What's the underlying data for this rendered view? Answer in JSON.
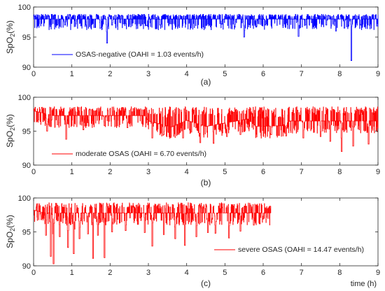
{
  "chart_data": [
    {
      "type": "line",
      "panel_label": "(a)",
      "ylabel": "SpO2(%)",
      "xlabel": "",
      "xlim": [
        0,
        9
      ],
      "ylim": [
        90,
        100
      ],
      "xticks": [
        "0",
        "1",
        "2",
        "3",
        "4",
        "5",
        "6",
        "7",
        "8",
        "9"
      ],
      "yticks": [
        "90",
        "95",
        "100"
      ],
      "legend_position": "lower-left",
      "series": [
        {
          "name": "OSAS-negative (OAHI = 1.03 events/h)",
          "color": "#0000ff",
          "end": 9.0,
          "upper": 98.8,
          "baseline": [
            [
              0,
              98
            ],
            [
              9,
              98
            ]
          ],
          "dips": [
            [
              0.62,
              97.0
            ],
            [
              0.82,
              97.0
            ],
            [
              1.1,
              97.2
            ],
            [
              1.38,
              97.0
            ],
            [
              1.58,
              96.6
            ],
            [
              1.75,
              96.5
            ],
            [
              1.92,
              94.0
            ],
            [
              2.05,
              97.0
            ],
            [
              2.35,
              97.2
            ],
            [
              2.95,
              96.9
            ],
            [
              3.3,
              97.0
            ],
            [
              4.9,
              97.2
            ],
            [
              5.25,
              96.8
            ],
            [
              5.5,
              95.0
            ],
            [
              5.82,
              96.8
            ],
            [
              6.05,
              97.0
            ],
            [
              6.92,
              95.1
            ],
            [
              7.1,
              97.0
            ],
            [
              7.65,
              97.0
            ],
            [
              7.9,
              96.0
            ],
            [
              8.12,
              96.5
            ],
            [
              8.3,
              91.1
            ],
            [
              8.55,
              97.0
            ]
          ]
        }
      ]
    },
    {
      "type": "line",
      "panel_label": "(b)",
      "ylabel": "SpO2(%)",
      "xlabel": "",
      "xlim": [
        0,
        9
      ],
      "ylim": [
        90,
        100
      ],
      "xticks": [
        "0",
        "1",
        "2",
        "3",
        "4",
        "5",
        "6",
        "7",
        "8",
        "9"
      ],
      "yticks": [
        "90",
        "95",
        "100"
      ],
      "legend_position": "lower-left",
      "series": [
        {
          "name": "moderate OSAS (OAHI = 6.70 events/h)",
          "color": "#ff0000",
          "end": 9.0,
          "upper": 98.6,
          "baseline": [
            [
              0,
              98
            ],
            [
              0.5,
              97.3
            ],
            [
              2.9,
              97.3
            ],
            [
              3.0,
              96.5
            ],
            [
              3.6,
              95.6
            ],
            [
              4.0,
              96.6
            ],
            [
              4.5,
              95.7
            ],
            [
              5.6,
              96.8
            ],
            [
              5.8,
              95.7
            ],
            [
              6.5,
              95.8
            ],
            [
              6.7,
              96.5
            ],
            [
              9,
              96.5
            ]
          ],
          "dips": [
            [
              0.35,
              95.0
            ],
            [
              0.85,
              93.8
            ],
            [
              1.3,
              95.2
            ],
            [
              1.85,
              95.8
            ],
            [
              2.45,
              95.5
            ],
            [
              3.1,
              94.0
            ],
            [
              3.4,
              94.5
            ],
            [
              3.9,
              94.0
            ],
            [
              4.35,
              93.3
            ],
            [
              4.7,
              93.2
            ],
            [
              5.05,
              94.2
            ],
            [
              5.4,
              94.5
            ],
            [
              6.2,
              94.5
            ],
            [
              6.6,
              94.3
            ],
            [
              7.05,
              94.0
            ],
            [
              7.5,
              94.2
            ],
            [
              7.75,
              93.5
            ],
            [
              8.05,
              92.0
            ],
            [
              8.35,
              92.8
            ],
            [
              8.75,
              93.1
            ]
          ]
        }
      ]
    },
    {
      "type": "line",
      "panel_label": "(c)",
      "ylabel": "SpO2(%)",
      "xlabel": "time (h)",
      "xlim": [
        0,
        9
      ],
      "ylim": [
        90,
        100
      ],
      "xticks": [
        "0",
        "1",
        "2",
        "3",
        "4",
        "5",
        "6",
        "7",
        "8",
        "9"
      ],
      "yticks": [
        "90",
        "95",
        "100"
      ],
      "legend_position": "lower-right",
      "series": [
        {
          "name": "severe OSAS (OAHI = 14.47 events/h)",
          "color": "#ff0000",
          "end": 6.2,
          "upper": 99.3,
          "baseline": [
            [
              0,
              98.2
            ],
            [
              0.3,
              97.8
            ],
            [
              6.2,
              97.8
            ]
          ],
          "dips": [
            [
              0.2,
              96.8
            ],
            [
              0.32,
              94.5
            ],
            [
              0.45,
              91.4
            ],
            [
              0.52,
              90.3
            ],
            [
              0.68,
              94.3
            ],
            [
              0.9,
              92.7
            ],
            [
              1.05,
              91.8
            ],
            [
              1.2,
              94.0
            ],
            [
              1.42,
              94.7
            ],
            [
              1.55,
              91.1
            ],
            [
              1.68,
              94.5
            ],
            [
              1.85,
              91.2
            ],
            [
              2.05,
              95.0
            ],
            [
              2.4,
              95.2
            ],
            [
              2.9,
              94.9
            ],
            [
              3.1,
              92.9
            ],
            [
              3.4,
              94.6
            ],
            [
              3.7,
              94.0
            ],
            [
              3.95,
              93.0
            ],
            [
              4.25,
              94.3
            ],
            [
              4.55,
              94.9
            ],
            [
              4.75,
              94.8
            ],
            [
              5.1,
              94.1
            ],
            [
              5.4,
              95.1
            ],
            [
              5.75,
              96.0
            ],
            [
              6.0,
              96.9
            ]
          ]
        }
      ]
    }
  ]
}
